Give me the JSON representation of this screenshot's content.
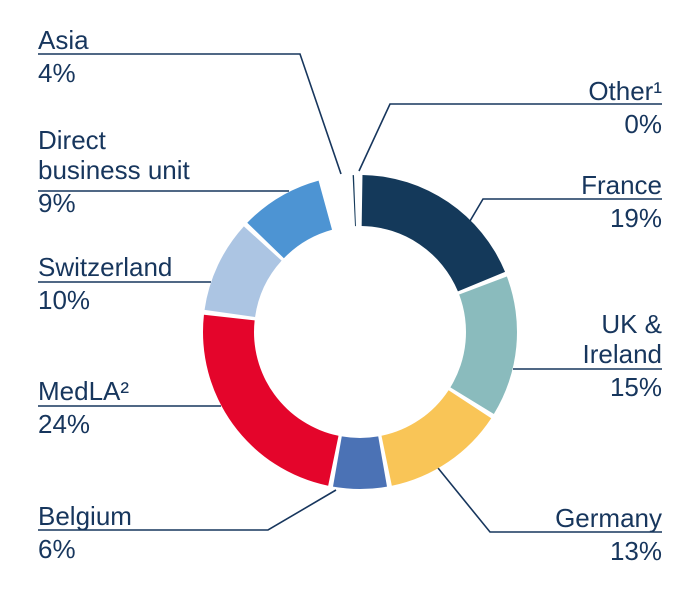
{
  "chart_data": {
    "type": "pie",
    "subtype": "donut",
    "title": "",
    "unit": "%",
    "legend_position": "around-chart-with-leader-lines",
    "segments": [
      {
        "id": "other",
        "label": "Other¹",
        "label_lines": [
          "Other¹"
        ],
        "value": 0,
        "value_label": "0%",
        "color": "#14395A"
      },
      {
        "id": "france",
        "label": "France",
        "label_lines": [
          "France"
        ],
        "value": 19,
        "value_label": "19%",
        "color": "#14395A"
      },
      {
        "id": "uk_ireland",
        "label": "UK & Ireland",
        "label_lines": [
          "UK &",
          "Ireland"
        ],
        "value": 15,
        "value_label": "15%",
        "color": "#8ABBBD"
      },
      {
        "id": "germany",
        "label": "Germany",
        "label_lines": [
          "Germany"
        ],
        "value": 13,
        "value_label": "13%",
        "color": "#F9C557"
      },
      {
        "id": "belgium",
        "label": "Belgium",
        "label_lines": [
          "Belgium"
        ],
        "value": 6,
        "value_label": "6%",
        "color": "#4B72B5"
      },
      {
        "id": "medla",
        "label": "MedLA²",
        "label_lines": [
          "MedLA²"
        ],
        "value": 24,
        "value_label": "24%",
        "color": "#E4052B"
      },
      {
        "id": "switzerland",
        "label": "Switzerland",
        "label_lines": [
          "Switzerland"
        ],
        "value": 10,
        "value_label": "10%",
        "color": "#ACC5E3"
      },
      {
        "id": "direct",
        "label": "Direct business unit",
        "label_lines": [
          "Direct",
          "business unit"
        ],
        "value": 9,
        "value_label": "9%",
        "color": "#4D94D3"
      },
      {
        "id": "asia",
        "label": "Asia",
        "label_lines": [
          "Asia"
        ],
        "value": 4,
        "value_label": "4%",
        "color": "#E4052B"
      }
    ],
    "colors": {
      "text": "#17365D",
      "leader_line": "#17365D",
      "background": "#FFFFFF"
    }
  }
}
